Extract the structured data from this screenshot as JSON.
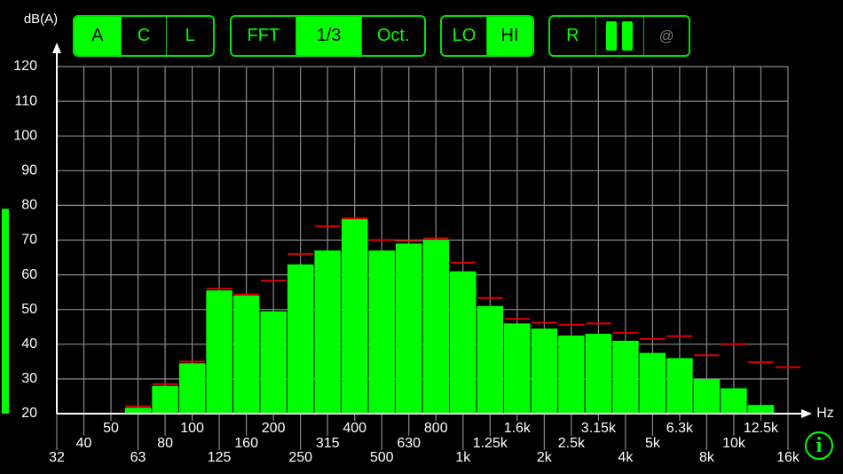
{
  "toolbar": {
    "weighting": [
      "A",
      "C",
      "L"
    ],
    "mode": [
      "FFT",
      "1/3",
      "Oct."
    ],
    "range": [
      "LO",
      "HI"
    ],
    "actions": [
      "R",
      "@"
    ]
  },
  "info": "i",
  "chart_data": {
    "type": "bar",
    "y_label": "dB(A)",
    "x_label": "Hz",
    "categories": [
      "32",
      "40",
      "50",
      "63",
      "80",
      "100",
      "125",
      "160",
      "200",
      "250",
      "315",
      "400",
      "500",
      "630",
      "800",
      "1k",
      "1.25k",
      "1.6k",
      "2k",
      "2.5k",
      "3.15k",
      "4k",
      "5k",
      "6.3k",
      "8k",
      "10k",
      "12.5k",
      "16k"
    ],
    "values": [
      null,
      null,
      null,
      21.7,
      28,
      34.5,
      55.5,
      54,
      49.5,
      63,
      67,
      76,
      67,
      69,
      70,
      61,
      51,
      46,
      44.5,
      42.5,
      43,
      41,
      37.5,
      36,
      30,
      27.3,
      22.5,
      null
    ],
    "peaks": [
      null,
      null,
      null,
      22.1,
      28.5,
      35,
      56,
      54.3,
      58.3,
      66,
      74,
      76.3,
      70,
      69.7,
      70.5,
      63.5,
      53.3,
      47.3,
      46.2,
      45.6,
      46,
      43.3,
      41.5,
      42.3,
      36.8,
      40,
      34.8,
      33.4
    ],
    "level": 79,
    "color": "#00ff00",
    "peak_color": "#e00000",
    "ylim": [
      20,
      120
    ],
    "yticks": [
      20,
      30,
      40,
      50,
      60,
      70,
      80,
      90,
      100,
      110,
      120
    ],
    "grid": true
  }
}
